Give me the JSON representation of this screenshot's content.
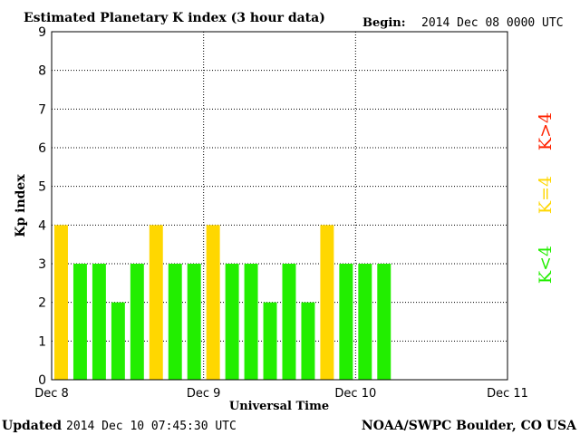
{
  "chart_data": {
    "type": "bar",
    "title": "Estimated Planetary K index (3 hour data)",
    "begin_label": "Begin:",
    "begin_value": "2014 Dec 08 0000 UTC",
    "xlabel": "Universal Time",
    "ylabel": "Kp index",
    "ylim": [
      0,
      9
    ],
    "yticks": [
      "0",
      "1",
      "2",
      "3",
      "4",
      "5",
      "6",
      "7",
      "8",
      "9"
    ],
    "xticks": [
      "Dec 8",
      "Dec 9",
      "Dec 10",
      "Dec 11"
    ],
    "xlim_hours": [
      0,
      72
    ],
    "grid": true,
    "interval_hours": 3,
    "values": [
      4,
      3,
      3,
      2,
      3,
      4,
      3,
      3,
      4,
      3,
      3,
      2,
      3,
      2,
      4,
      3,
      3,
      3
    ],
    "legend": [
      {
        "label": "K<4",
        "color": "#22ee00"
      },
      {
        "label": "K=4",
        "color": "#ffd700"
      },
      {
        "label": "K>4",
        "color": "#ff2200"
      }
    ]
  },
  "footer": {
    "updated_label": "Updated",
    "updated_value": "2014 Dec 10 07:45:30 UTC",
    "source": "NOAA/SWPC Boulder, CO USA"
  }
}
